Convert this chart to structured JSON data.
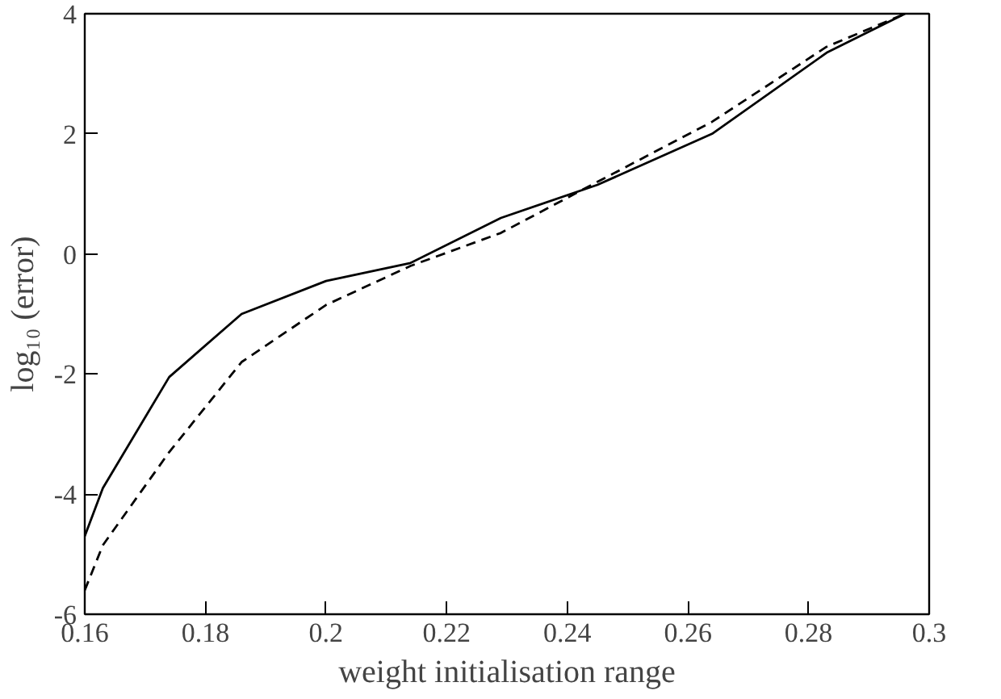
{
  "chart_data": {
    "type": "line",
    "xlabel": "weight initialisation range",
    "ylabel": "log₁₀ (error)",
    "xlim": [
      0.16,
      0.3
    ],
    "ylim": [
      -6,
      4
    ],
    "xticks": [
      0.16,
      0.18,
      {
        "value": 0.2,
        "label": "0.2"
      },
      0.22,
      0.24,
      0.26,
      0.28,
      {
        "value": 0.3,
        "label": "0.3"
      }
    ],
    "yticks": [
      -6,
      -4,
      -2,
      0,
      2,
      4
    ],
    "grid": false,
    "series": [
      {
        "color": "#000000",
        "line_style": "solid",
        "x": [
          0.16,
          0.163,
          0.174,
          0.186,
          0.2,
          0.214,
          0.229,
          0.245,
          0.264,
          0.283,
          0.296
        ],
        "values": [
          -4.7,
          -3.9,
          -2.05,
          -1.0,
          -0.45,
          -0.15,
          0.6,
          1.15,
          2.0,
          3.35,
          4.0
        ]
      },
      {
        "color": "#000000",
        "line_style": "dashed",
        "x": [
          0.16,
          0.163,
          0.174,
          0.186,
          0.2,
          0.214,
          0.229,
          0.245,
          0.264,
          0.283,
          0.296
        ],
        "values": [
          -5.6,
          -4.85,
          -3.3,
          -1.8,
          -0.85,
          -0.2,
          0.35,
          1.2,
          2.2,
          3.45,
          4.0
        ]
      }
    ]
  }
}
